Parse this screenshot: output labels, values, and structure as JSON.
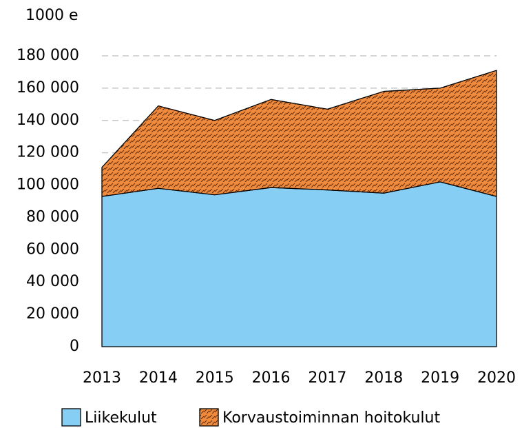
{
  "chart_data": {
    "type": "area",
    "stacked": true,
    "y_unit_label": "1000 e",
    "categories": [
      "2013",
      "2014",
      "2015",
      "2016",
      "2017",
      "2018",
      "2019",
      "2020"
    ],
    "series": [
      {
        "name": "Liikekulut",
        "color": "#87cef5",
        "values": [
          93000,
          98000,
          94000,
          98500,
          97000,
          95000,
          102000,
          93000
        ]
      },
      {
        "name": "Korvaustoiminnan hoitokulut",
        "color": "#f08a3c",
        "hatch": true,
        "values": [
          18000,
          51000,
          46000,
          54500,
          50000,
          63000,
          58000,
          78000
        ]
      }
    ],
    "ylim": [
      0,
      180000
    ],
    "yticks": [
      0,
      {
        "value": 20000,
        "label": "20 000"
      },
      {
        "value": 40000,
        "label": "40 000"
      },
      {
        "value": 60000,
        "label": "60 000"
      },
      {
        "value": 80000,
        "label": "80 000"
      },
      {
        "value": 100000,
        "label": "100 000"
      },
      {
        "value": 120000,
        "label": "120 000"
      },
      {
        "value": 140000,
        "label": "140 000"
      },
      {
        "value": 160000,
        "label": "160 000"
      },
      {
        "value": 180000,
        "label": "180 000"
      }
    ],
    "grid": true,
    "legend": "bottom"
  }
}
